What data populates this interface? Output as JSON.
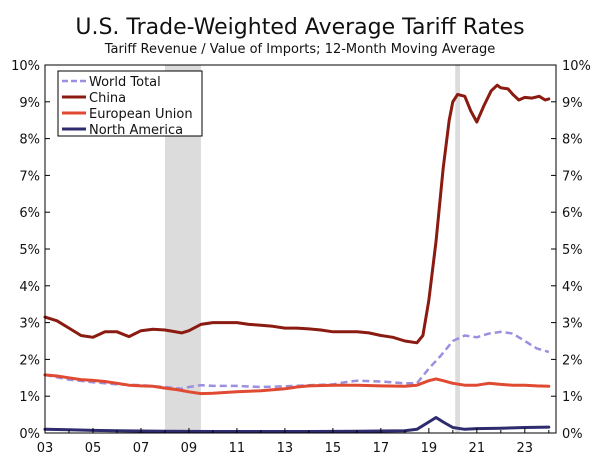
{
  "chart_data": {
    "type": "line",
    "title": "U.S. Trade-Weighted Average Tariff Rates",
    "subtitle": "Tariff Revenue / Value of Imports; 12-Month Moving Average",
    "xlabel": "",
    "ylabel": "",
    "xlim": [
      2003.0,
      2024.3
    ],
    "ylim": [
      0,
      10
    ],
    "x_tick_labels": [
      "03",
      "05",
      "07",
      "09",
      "11",
      "13",
      "15",
      "17",
      "19",
      "21",
      "23"
    ],
    "x_tick_values": [
      2003,
      2005,
      2007,
      2009,
      2011,
      2013,
      2015,
      2017,
      2019,
      2021,
      2023
    ],
    "y_tick_labels": [
      "0%",
      "1%",
      "2%",
      "3%",
      "4%",
      "5%",
      "6%",
      "7%",
      "8%",
      "9%",
      "10%"
    ],
    "y_tick_values": [
      0,
      1,
      2,
      3,
      4,
      5,
      6,
      7,
      8,
      9,
      10
    ],
    "grid": false,
    "legend_position": "top-left",
    "shaded_periods": [
      {
        "start": 2008.0,
        "end": 2009.5
      },
      {
        "start": 2020.1,
        "end": 2020.3
      }
    ],
    "series": [
      {
        "name": "World Total",
        "color": "#9b8fe0",
        "style": "dashed",
        "points": [
          [
            2003.0,
            1.58
          ],
          [
            2004.0,
            1.45
          ],
          [
            2005.0,
            1.38
          ],
          [
            2006.0,
            1.32
          ],
          [
            2007.0,
            1.3
          ],
          [
            2008.0,
            1.25
          ],
          [
            2008.7,
            1.2
          ],
          [
            2009.0,
            1.25
          ],
          [
            2009.5,
            1.3
          ],
          [
            2010.0,
            1.28
          ],
          [
            2011.0,
            1.28
          ],
          [
            2012.0,
            1.25
          ],
          [
            2013.0,
            1.27
          ],
          [
            2014.0,
            1.3
          ],
          [
            2015.0,
            1.32
          ],
          [
            2015.5,
            1.38
          ],
          [
            2016.0,
            1.42
          ],
          [
            2017.0,
            1.4
          ],
          [
            2018.0,
            1.35
          ],
          [
            2018.5,
            1.35
          ],
          [
            2019.0,
            1.75
          ],
          [
            2019.5,
            2.1
          ],
          [
            2020.0,
            2.5
          ],
          [
            2020.5,
            2.65
          ],
          [
            2021.0,
            2.6
          ],
          [
            2021.5,
            2.7
          ],
          [
            2022.0,
            2.75
          ],
          [
            2022.5,
            2.7
          ],
          [
            2023.0,
            2.5
          ],
          [
            2023.5,
            2.3
          ],
          [
            2024.0,
            2.2
          ]
        ]
      },
      {
        "name": "China",
        "color": "#8b1a10",
        "style": "solid",
        "points": [
          [
            2003.0,
            3.15
          ],
          [
            2003.5,
            3.05
          ],
          [
            2004.0,
            2.85
          ],
          [
            2004.5,
            2.65
          ],
          [
            2005.0,
            2.6
          ],
          [
            2005.5,
            2.75
          ],
          [
            2006.0,
            2.75
          ],
          [
            2006.5,
            2.62
          ],
          [
            2007.0,
            2.78
          ],
          [
            2007.5,
            2.82
          ],
          [
            2008.0,
            2.8
          ],
          [
            2008.7,
            2.72
          ],
          [
            2009.0,
            2.78
          ],
          [
            2009.5,
            2.95
          ],
          [
            2010.0,
            3.0
          ],
          [
            2011.0,
            3.0
          ],
          [
            2011.5,
            2.95
          ],
          [
            2012.0,
            2.93
          ],
          [
            2012.5,
            2.9
          ],
          [
            2013.0,
            2.85
          ],
          [
            2013.5,
            2.85
          ],
          [
            2014.0,
            2.83
          ],
          [
            2014.5,
            2.8
          ],
          [
            2015.0,
            2.75
          ],
          [
            2015.5,
            2.75
          ],
          [
            2016.0,
            2.75
          ],
          [
            2016.5,
            2.72
          ],
          [
            2017.0,
            2.65
          ],
          [
            2017.5,
            2.6
          ],
          [
            2018.0,
            2.5
          ],
          [
            2018.5,
            2.45
          ],
          [
            2018.75,
            2.65
          ],
          [
            2019.0,
            3.6
          ],
          [
            2019.3,
            5.2
          ],
          [
            2019.6,
            7.2
          ],
          [
            2019.85,
            8.5
          ],
          [
            2020.0,
            9.0
          ],
          [
            2020.2,
            9.2
          ],
          [
            2020.5,
            9.15
          ],
          [
            2020.75,
            8.75
          ],
          [
            2021.0,
            8.45
          ],
          [
            2021.3,
            8.9
          ],
          [
            2021.6,
            9.3
          ],
          [
            2021.85,
            9.45
          ],
          [
            2022.0,
            9.38
          ],
          [
            2022.3,
            9.35
          ],
          [
            2022.5,
            9.2
          ],
          [
            2022.75,
            9.05
          ],
          [
            2023.0,
            9.12
          ],
          [
            2023.3,
            9.1
          ],
          [
            2023.6,
            9.15
          ],
          [
            2023.85,
            9.05
          ],
          [
            2024.0,
            9.08
          ]
        ]
      },
      {
        "name": "European Union",
        "color": "#e04a32",
        "style": "solid",
        "points": [
          [
            2003.0,
            1.58
          ],
          [
            2003.5,
            1.55
          ],
          [
            2004.0,
            1.5
          ],
          [
            2004.5,
            1.45
          ],
          [
            2005.0,
            1.43
          ],
          [
            2005.5,
            1.4
          ],
          [
            2006.0,
            1.35
          ],
          [
            2006.5,
            1.3
          ],
          [
            2007.0,
            1.28
          ],
          [
            2007.5,
            1.27
          ],
          [
            2008.0,
            1.22
          ],
          [
            2008.5,
            1.18
          ],
          [
            2009.0,
            1.12
          ],
          [
            2009.5,
            1.07
          ],
          [
            2010.0,
            1.08
          ],
          [
            2011.0,
            1.12
          ],
          [
            2012.0,
            1.15
          ],
          [
            2013.0,
            1.2
          ],
          [
            2013.5,
            1.25
          ],
          [
            2014.0,
            1.28
          ],
          [
            2015.0,
            1.3
          ],
          [
            2016.0,
            1.3
          ],
          [
            2017.0,
            1.28
          ],
          [
            2018.0,
            1.27
          ],
          [
            2018.5,
            1.3
          ],
          [
            2019.0,
            1.42
          ],
          [
            2019.3,
            1.47
          ],
          [
            2019.6,
            1.42
          ],
          [
            2020.0,
            1.35
          ],
          [
            2020.5,
            1.3
          ],
          [
            2021.0,
            1.3
          ],
          [
            2021.5,
            1.35
          ],
          [
            2022.0,
            1.32
          ],
          [
            2022.5,
            1.3
          ],
          [
            2023.0,
            1.3
          ],
          [
            2023.5,
            1.28
          ],
          [
            2024.0,
            1.27
          ]
        ]
      },
      {
        "name": "North America",
        "color": "#2e2b6e",
        "style": "solid",
        "points": [
          [
            2003.0,
            0.1
          ],
          [
            2004.0,
            0.09
          ],
          [
            2005.0,
            0.07
          ],
          [
            2006.0,
            0.06
          ],
          [
            2008.0,
            0.05
          ],
          [
            2010.0,
            0.04
          ],
          [
            2012.0,
            0.04
          ],
          [
            2014.0,
            0.04
          ],
          [
            2016.0,
            0.05
          ],
          [
            2018.0,
            0.06
          ],
          [
            2018.5,
            0.1
          ],
          [
            2019.0,
            0.3
          ],
          [
            2019.3,
            0.42
          ],
          [
            2019.6,
            0.3
          ],
          [
            2020.0,
            0.15
          ],
          [
            2020.5,
            0.1
          ],
          [
            2021.0,
            0.12
          ],
          [
            2022.0,
            0.13
          ],
          [
            2023.0,
            0.15
          ],
          [
            2024.0,
            0.16
          ]
        ]
      }
    ]
  }
}
